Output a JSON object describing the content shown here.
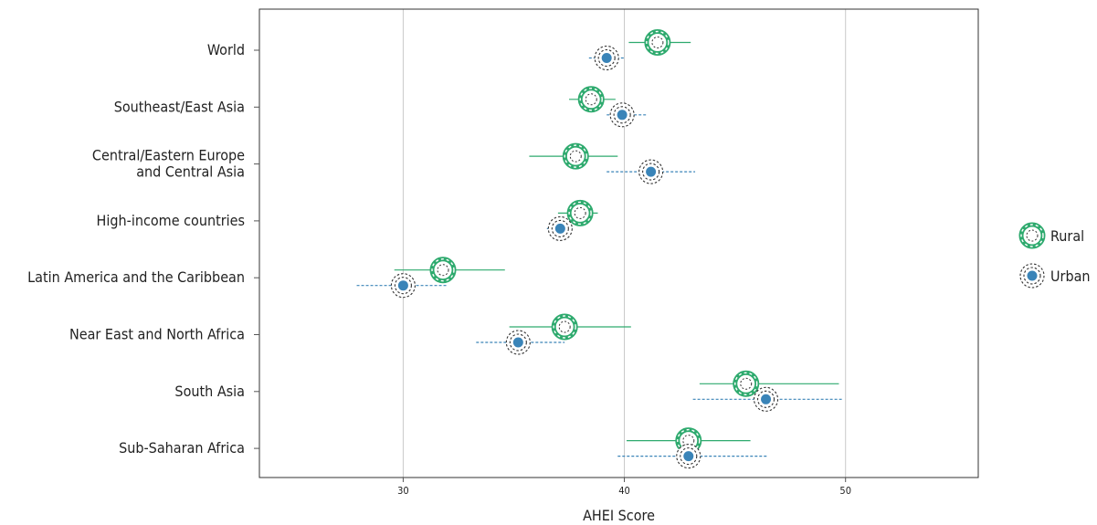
{
  "chart_data": {
    "type": "dot-interval",
    "title": "",
    "xlabel": "AHEI Score",
    "ylabel": "",
    "xlim": [
      23.5,
      56
    ],
    "xticks": [
      30,
      40,
      50
    ],
    "grid": "vertical",
    "legend_position": "right",
    "categories": [
      [
        "World"
      ],
      [
        "Southeast/East Asia"
      ],
      [
        "Central/Eastern Europe",
        "and Central Asia"
      ],
      [
        "High-income countries"
      ],
      [
        "Latin America and the Caribbean"
      ],
      [
        "Near East and North Africa"
      ],
      [
        "South Asia"
      ],
      [
        "Sub-Saharan Africa"
      ]
    ],
    "series": [
      {
        "name": "Rural",
        "color": "#2eaa6e",
        "values": [
          41.5,
          38.5,
          37.8,
          38.0,
          31.8,
          37.3,
          45.5,
          42.9
        ],
        "low": [
          40.2,
          37.5,
          35.7,
          37.0,
          29.6,
          34.8,
          43.4,
          40.1
        ],
        "high": [
          43.0,
          39.6,
          39.7,
          38.8,
          34.6,
          40.3,
          49.7,
          45.7
        ]
      },
      {
        "name": "Urban",
        "color": "#3a84b8",
        "values": [
          39.2,
          39.9,
          41.2,
          37.1,
          30.0,
          35.2,
          46.4,
          42.9
        ],
        "low": [
          38.4,
          39.2,
          39.2,
          36.5,
          27.9,
          33.3,
          43.1,
          39.7
        ],
        "high": [
          40.0,
          41.0,
          43.2,
          37.7,
          32.0,
          37.3,
          49.9,
          46.5
        ]
      }
    ]
  }
}
